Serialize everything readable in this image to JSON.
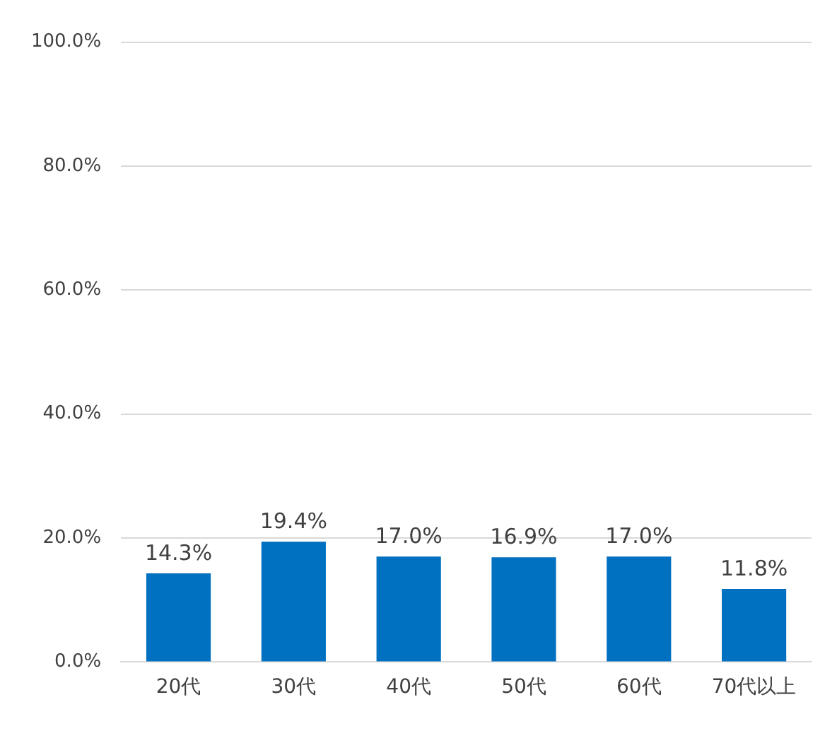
{
  "chart_data": {
    "type": "bar",
    "categories": [
      "20代",
      "30代",
      "40代",
      "50代",
      "60代",
      "70代以上"
    ],
    "values": [
      14.3,
      19.4,
      17.0,
      16.9,
      17.0,
      11.8
    ],
    "value_labels": [
      "14.3%",
      "19.4%",
      "17.0%",
      "16.9%",
      "17.0%",
      "11.8%"
    ],
    "color": "#0070c0",
    "ylim": [
      0,
      100
    ],
    "yticks": [
      {
        "value": 0,
        "label": "0.0%"
      },
      {
        "value": 20,
        "label": "20.0%"
      },
      {
        "value": 40,
        "label": "40.0%"
      },
      {
        "value": 60,
        "label": "60.0%"
      },
      {
        "value": 80,
        "label": "80.0%"
      },
      {
        "value": 100,
        "label": "100.0%"
      }
    ],
    "grid": "y"
  }
}
